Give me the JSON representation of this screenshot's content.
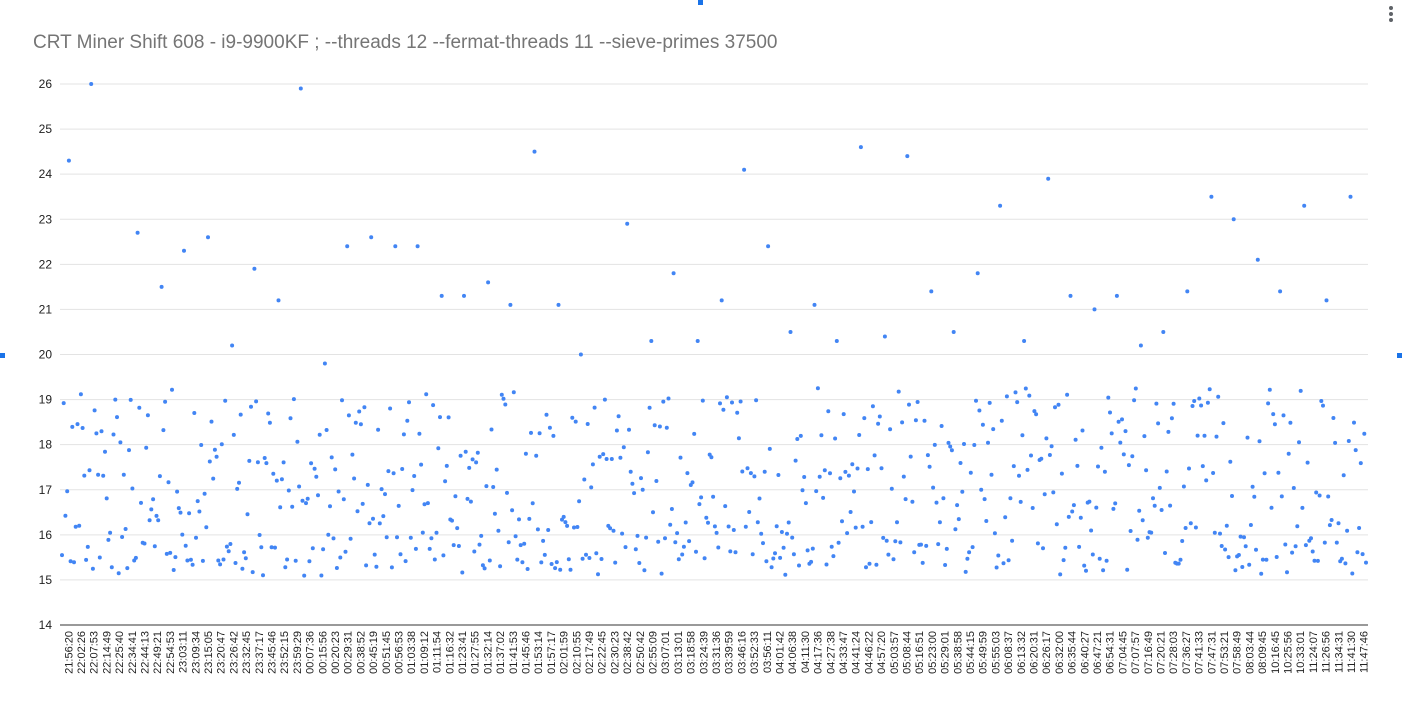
{
  "page": {
    "title": "CRT Miner Shift 608 - i9-9900KF ; --threads 12 --fermat-threads 11 --sieve-primes 37500"
  },
  "menu": {
    "icon": "more-vert-icon"
  },
  "colors": {
    "point": "#4285f4",
    "grid": "#e3e3e3",
    "axis_text": "#222222",
    "title": "#757575",
    "handle": "#1a73e8"
  },
  "chart_data": {
    "type": "scatter",
    "title": "CRT Miner Shift 608 - i9-9900KF ; --threads 12 --fermat-threads 11 --sieve-primes 37500",
    "xlabel": "",
    "ylabel": "",
    "ylim": [
      14,
      26
    ],
    "y_ticks": [
      "14",
      "15",
      "16",
      "17",
      "18",
      "19",
      "20",
      "21",
      "22",
      "23",
      "24",
      "25",
      "26"
    ],
    "x_tick_labels": [
      "21:56:20",
      "22:02:26",
      "22:07:53",
      "22:14:49",
      "22:25:40",
      "22:34:41",
      "22:44:13",
      "22:49:21",
      "22:54:53",
      "23:03:11",
      "23:09:34",
      "23:15:05",
      "23:20:47",
      "23:26:42",
      "23:32:45",
      "23:37:17",
      "23:45:46",
      "23:52:15",
      "23:59:29",
      "00:07:36",
      "00:15:56",
      "00:20:23",
      "00:29:31",
      "00:38:52",
      "00:45:19",
      "00:51:45",
      "00:56:53",
      "01:03:38",
      "01:09:12",
      "01:11:54",
      "01:16:32",
      "01:23:41",
      "01:27:55",
      "01:32:14",
      "01:37:02",
      "01:41:53",
      "01:45:46",
      "01:53:14",
      "01:57:17",
      "02:01:59",
      "02:10:55",
      "02:17:49",
      "02:22:45",
      "02:30:23",
      "02:38:42",
      "02:50:42",
      "02:55:09",
      "03:07:01",
      "03:13:01",
      "03:18:58",
      "03:24:39",
      "03:31:36",
      "03:39:59",
      "03:46:16",
      "03:52:33",
      "03:56:11",
      "04:01:42",
      "04:06:38",
      "04:11:30",
      "04:17:36",
      "04:27:38",
      "04:33:47",
      "04:41:24",
      "04:46:22",
      "04:57:20",
      "05:03:57",
      "05:08:44",
      "05:16:51",
      "05:23:00",
      "05:29:01",
      "05:38:58",
      "05:44:15",
      "05:49:59",
      "05:55:03",
      "06:08:37",
      "06:13:32",
      "06:20:31",
      "06:26:17",
      "06:32:00",
      "06:35:44",
      "06:40:27",
      "06:47:21",
      "06:54:31",
      "07:04:45",
      "07:07:57",
      "07:16:49",
      "07:20:21",
      "07:28:03",
      "07:36:27",
      "07:41:33",
      "07:47:31",
      "07:53:21",
      "07:58:49",
      "08:03:44",
      "08:09:45",
      "10:16:45",
      "10:25:56",
      "10:33:01",
      "11:24:07",
      "11:26:56",
      "11:34:31",
      "11:41:30",
      "11:47:46"
    ],
    "series": [
      {
        "values": [
          18.0,
          17.3,
          16.2,
          17.0,
          16.4,
          17.1,
          16.6,
          16.3,
          17.0,
          16.7,
          16.3,
          16.3,
          16.1,
          16.1,
          16.3,
          16.2,
          16.3,
          17.3,
          16.3,
          17.7,
          17.2,
          16.7,
          17.4,
          17.1,
          17.4,
          17.1,
          16.9,
          16.9,
          17.2,
          16.7,
          16.6,
          17.3,
          16.9,
          16.8,
          17.1,
          16.9,
          17.7,
          16.5,
          17.3,
          17.4,
          17.3,
          17.5,
          16.8,
          16.4,
          16.4,
          16.7,
          16.5,
          16.4,
          17.3,
          17.3,
          17.2,
          16.8,
          16.4,
          16.9,
          16.5,
          16.2,
          17.4,
          16.9,
          17.0,
          16.5,
          17.5,
          17.0,
          17.2,
          16.8,
          16.7,
          17.0,
          16.6,
          16.7,
          16.9,
          17.0,
          17.1,
          16.6,
          17.0,
          16.7,
          16.7,
          16.3,
          17.6,
          17.6,
          16.7,
          17.2,
          16.8,
          17.2,
          16.5,
          16.6,
          16.8,
          17.3,
          17.1,
          17.1,
          17.2,
          16.8,
          16.7,
          17.0,
          17.3,
          16.6,
          16.6,
          16.6,
          16.8,
          16.8,
          16.6,
          17.0,
          16.9,
          17.2,
          16.8,
          16.9,
          16.3,
          17.1,
          17.2,
          17.1,
          17.1,
          17.3,
          16.8,
          16.5,
          16.8,
          16.2,
          16.8,
          16.6,
          17.6,
          16.4,
          16.9,
          16.9,
          16.5,
          17.2,
          16.9,
          16.8,
          16.7,
          17.3,
          16.4,
          17.1,
          16.9,
          16.9,
          16.7,
          17.2,
          17.0,
          16.6,
          17.2,
          16.4,
          16.5,
          16.9,
          17.2,
          17.1,
          17.4,
          16.9,
          17.4,
          16.6,
          16.8,
          16.9,
          16.7,
          17.2,
          16.9,
          16.5,
          17.0,
          16.6,
          16.8,
          16.7,
          16.9,
          16.8,
          17.4,
          16.7,
          17.3,
          16.6,
          16.9,
          17.3,
          16.9,
          16.5,
          16.8,
          16.8,
          17.1,
          16.9,
          16.3,
          16.6,
          16.9,
          16.6,
          17.4,
          16.6,
          17.0,
          17.3,
          16.7,
          17.6,
          16.7,
          16.7,
          16.5,
          16.8,
          16.6,
          16.6,
          16.9,
          16.8,
          17.1,
          17.5,
          17.1,
          16.9,
          16.7,
          16.9,
          17.0,
          16.9,
          17.0,
          16.8,
          17.4,
          17.3,
          16.5,
          17.0,
          16.9,
          16.9,
          17.1,
          16.9,
          17.3,
          16.7,
          17.0,
          16.8,
          17.0,
          16.8,
          16.8,
          17.1,
          16.5,
          17.0,
          17.0,
          17.1,
          17.0,
          16.6,
          16.9,
          16.7,
          16.6,
          17.0,
          16.4,
          16.7,
          16.5,
          16.6,
          16.8,
          17.0,
          16.6,
          17.1,
          17.0,
          17.2,
          16.6,
          17.1,
          17.5,
          16.6,
          17.0,
          16.7,
          16.6,
          16.8,
          17.1,
          16.7,
          17.0,
          16.6,
          16.8,
          17.0,
          17.0,
          16.9,
          16.7,
          16.8,
          17.0,
          17.2,
          16.8,
          17.2,
          16.8,
          16.8,
          16.9,
          16.4,
          16.7,
          16.8,
          17.1,
          16.7,
          16.3,
          16.9,
          17.1,
          16.7,
          16.6,
          17.2,
          16.8,
          17.1,
          17.0,
          16.8,
          17.1,
          16.8,
          16.5,
          16.9,
          17.3,
          17.1,
          16.8,
          16.9,
          16.9,
          17.0,
          16.7,
          16.6,
          16.8,
          16.8,
          17.1,
          17.0,
          17.0,
          16.8,
          16.5,
          17.1,
          17.0,
          16.9,
          16.8,
          17.0,
          16.8,
          16.8,
          16.7,
          17.2,
          17.0,
          17.0,
          17.0,
          17.0,
          16.5,
          16.8,
          16.9,
          16.8,
          16.7,
          16.9,
          16.6,
          17.1,
          17.3,
          16.8,
          17.0,
          17.0,
          16.9,
          17.1,
          16.7,
          16.6,
          16.7,
          16.9,
          17.0,
          16.9,
          16.8,
          16.6,
          16.9,
          16.9,
          17.0,
          16.7,
          17.1,
          17.0,
          16.7,
          16.9,
          17.3,
          16.9,
          17.0,
          16.7,
          16.8,
          16.5,
          16.8,
          16.9,
          16.8,
          16.8,
          17.2,
          16.6,
          16.8,
          16.9,
          16.9,
          17.1,
          16.8,
          16.8,
          16.9,
          17.3,
          17.0,
          17.1,
          16.7,
          16.9,
          16.8,
          16.8,
          16.9,
          16.8,
          17.0,
          17.0,
          16.9,
          16.8,
          17.0,
          16.9,
          16.8,
          17.0,
          16.8,
          16.7,
          17.0,
          16.9,
          16.9,
          16.9,
          16.8,
          17.0,
          16.6,
          17.1,
          16.8,
          16.9,
          17.0,
          16.9,
          16.8,
          16.8,
          17.1,
          16.8,
          17.0,
          16.8,
          16.9,
          16.9,
          17.0,
          16.8,
          17.1,
          16.9,
          16.9,
          16.9,
          16.8,
          17.0,
          17.0,
          16.8,
          16.9,
          16.9,
          17.0,
          16.8,
          16.9,
          17.0,
          16.9,
          16.9,
          16.8,
          17.0,
          16.9,
          16.9,
          16.9,
          16.9,
          16.8,
          17.0,
          16.9,
          17.0,
          16.8,
          16.9,
          16.9,
          16.9,
          16.9,
          16.9,
          16.9,
          17.0,
          16.9,
          16.9,
          16.9,
          16.9
        ],
        "note_markers": [
          24.3,
          26.0,
          19.0,
          22.7,
          21.5,
          22.3,
          22.6,
          20.2,
          21.9,
          21.2,
          25.9,
          19.8,
          22.4,
          22.6,
          22.4,
          22.4,
          21.3,
          21.3,
          21.6,
          21.1,
          24.5,
          21.1,
          20.0,
          19.0,
          22.9,
          20.3,
          21.8,
          20.3,
          21.2,
          24.1,
          22.4,
          20.5,
          21.1,
          20.3,
          24.6,
          20.4,
          24.4,
          21.4,
          20.5,
          21.8,
          23.3,
          20.3,
          23.9,
          21.3,
          21.0,
          21.3,
          20.2,
          20.5,
          21.4,
          23.5,
          23.0,
          22.1,
          21.4,
          23.3,
          21.2,
          23.5
        ]
      }
    ]
  }
}
